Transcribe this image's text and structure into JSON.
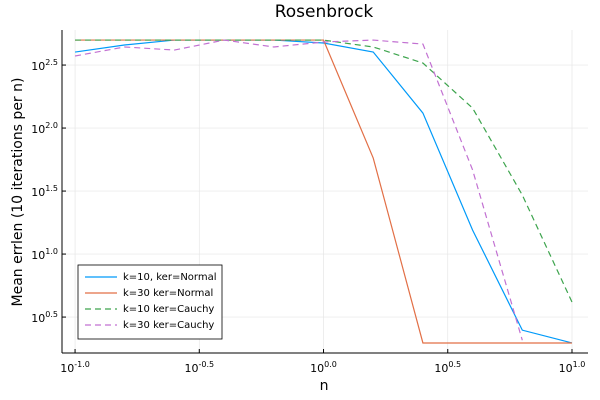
{
  "chart_data": {
    "type": "line",
    "title": "Rosenbrock",
    "x_label": "n",
    "y_label": "Mean errlen (10 iterations per n)",
    "x_scale": "log",
    "y_scale": "log",
    "grid": true,
    "legend_position": "bottom-left",
    "x": [
      0.1,
      0.158,
      0.251,
      0.398,
      0.631,
      1,
      1.585,
      2.512,
      3.981,
      6.31,
      10
    ],
    "xlim": [
      0.0886,
      11.6
    ],
    "ylim": [
      1.64,
      600
    ],
    "xticks": [
      {
        "value": 0.1,
        "label": "10",
        "exponent": "-1.0"
      },
      {
        "value": 0.3162,
        "label": "10",
        "exponent": "-0.5"
      },
      {
        "value": 1,
        "label": "10",
        "exponent": "0.0"
      },
      {
        "value": 3.162,
        "label": "10",
        "exponent": "0.5"
      },
      {
        "value": 10,
        "label": "10",
        "exponent": "1.0"
      }
    ],
    "yticks": [
      {
        "value": 3.162,
        "label": "10",
        "exponent": "0.5"
      },
      {
        "value": 10,
        "label": "10",
        "exponent": "1.0"
      },
      {
        "value": 31.62,
        "label": "10",
        "exponent": "1.5"
      },
      {
        "value": 100,
        "label": "10",
        "exponent": "2.0"
      },
      {
        "value": 316.2,
        "label": "10",
        "exponent": "2.5"
      }
    ],
    "series": [
      {
        "name": "k=10, ker=Normal",
        "color": "#009af9",
        "linestyle": "solid",
        "values": [
          401,
          456,
          499,
          499,
          499,
          473,
          401,
          131.5,
          15.5,
          2.49,
          1.97
        ]
      },
      {
        "name": "k=30 ker=Normal",
        "color": "#e26f46",
        "linestyle": "solid",
        "values": [
          499,
          499,
          499,
          499,
          499,
          499,
          57.8,
          1.97,
          1.97,
          1.97,
          1.97
        ]
      },
      {
        "name": "k=10 ker=Cauchy",
        "color": "#3da44d",
        "linestyle": "dash",
        "values": [
          499,
          499,
          499,
          499,
          499,
          499,
          440,
          328,
          144,
          29.4,
          4.16
        ]
      },
      {
        "name": "k=30 ker=Cauchy",
        "color": "#c271d2",
        "linestyle": "dash",
        "values": [
          373,
          440,
          416,
          499,
          440,
          482,
          499,
          464,
          46.5,
          2.07,
          null
        ]
      }
    ]
  }
}
